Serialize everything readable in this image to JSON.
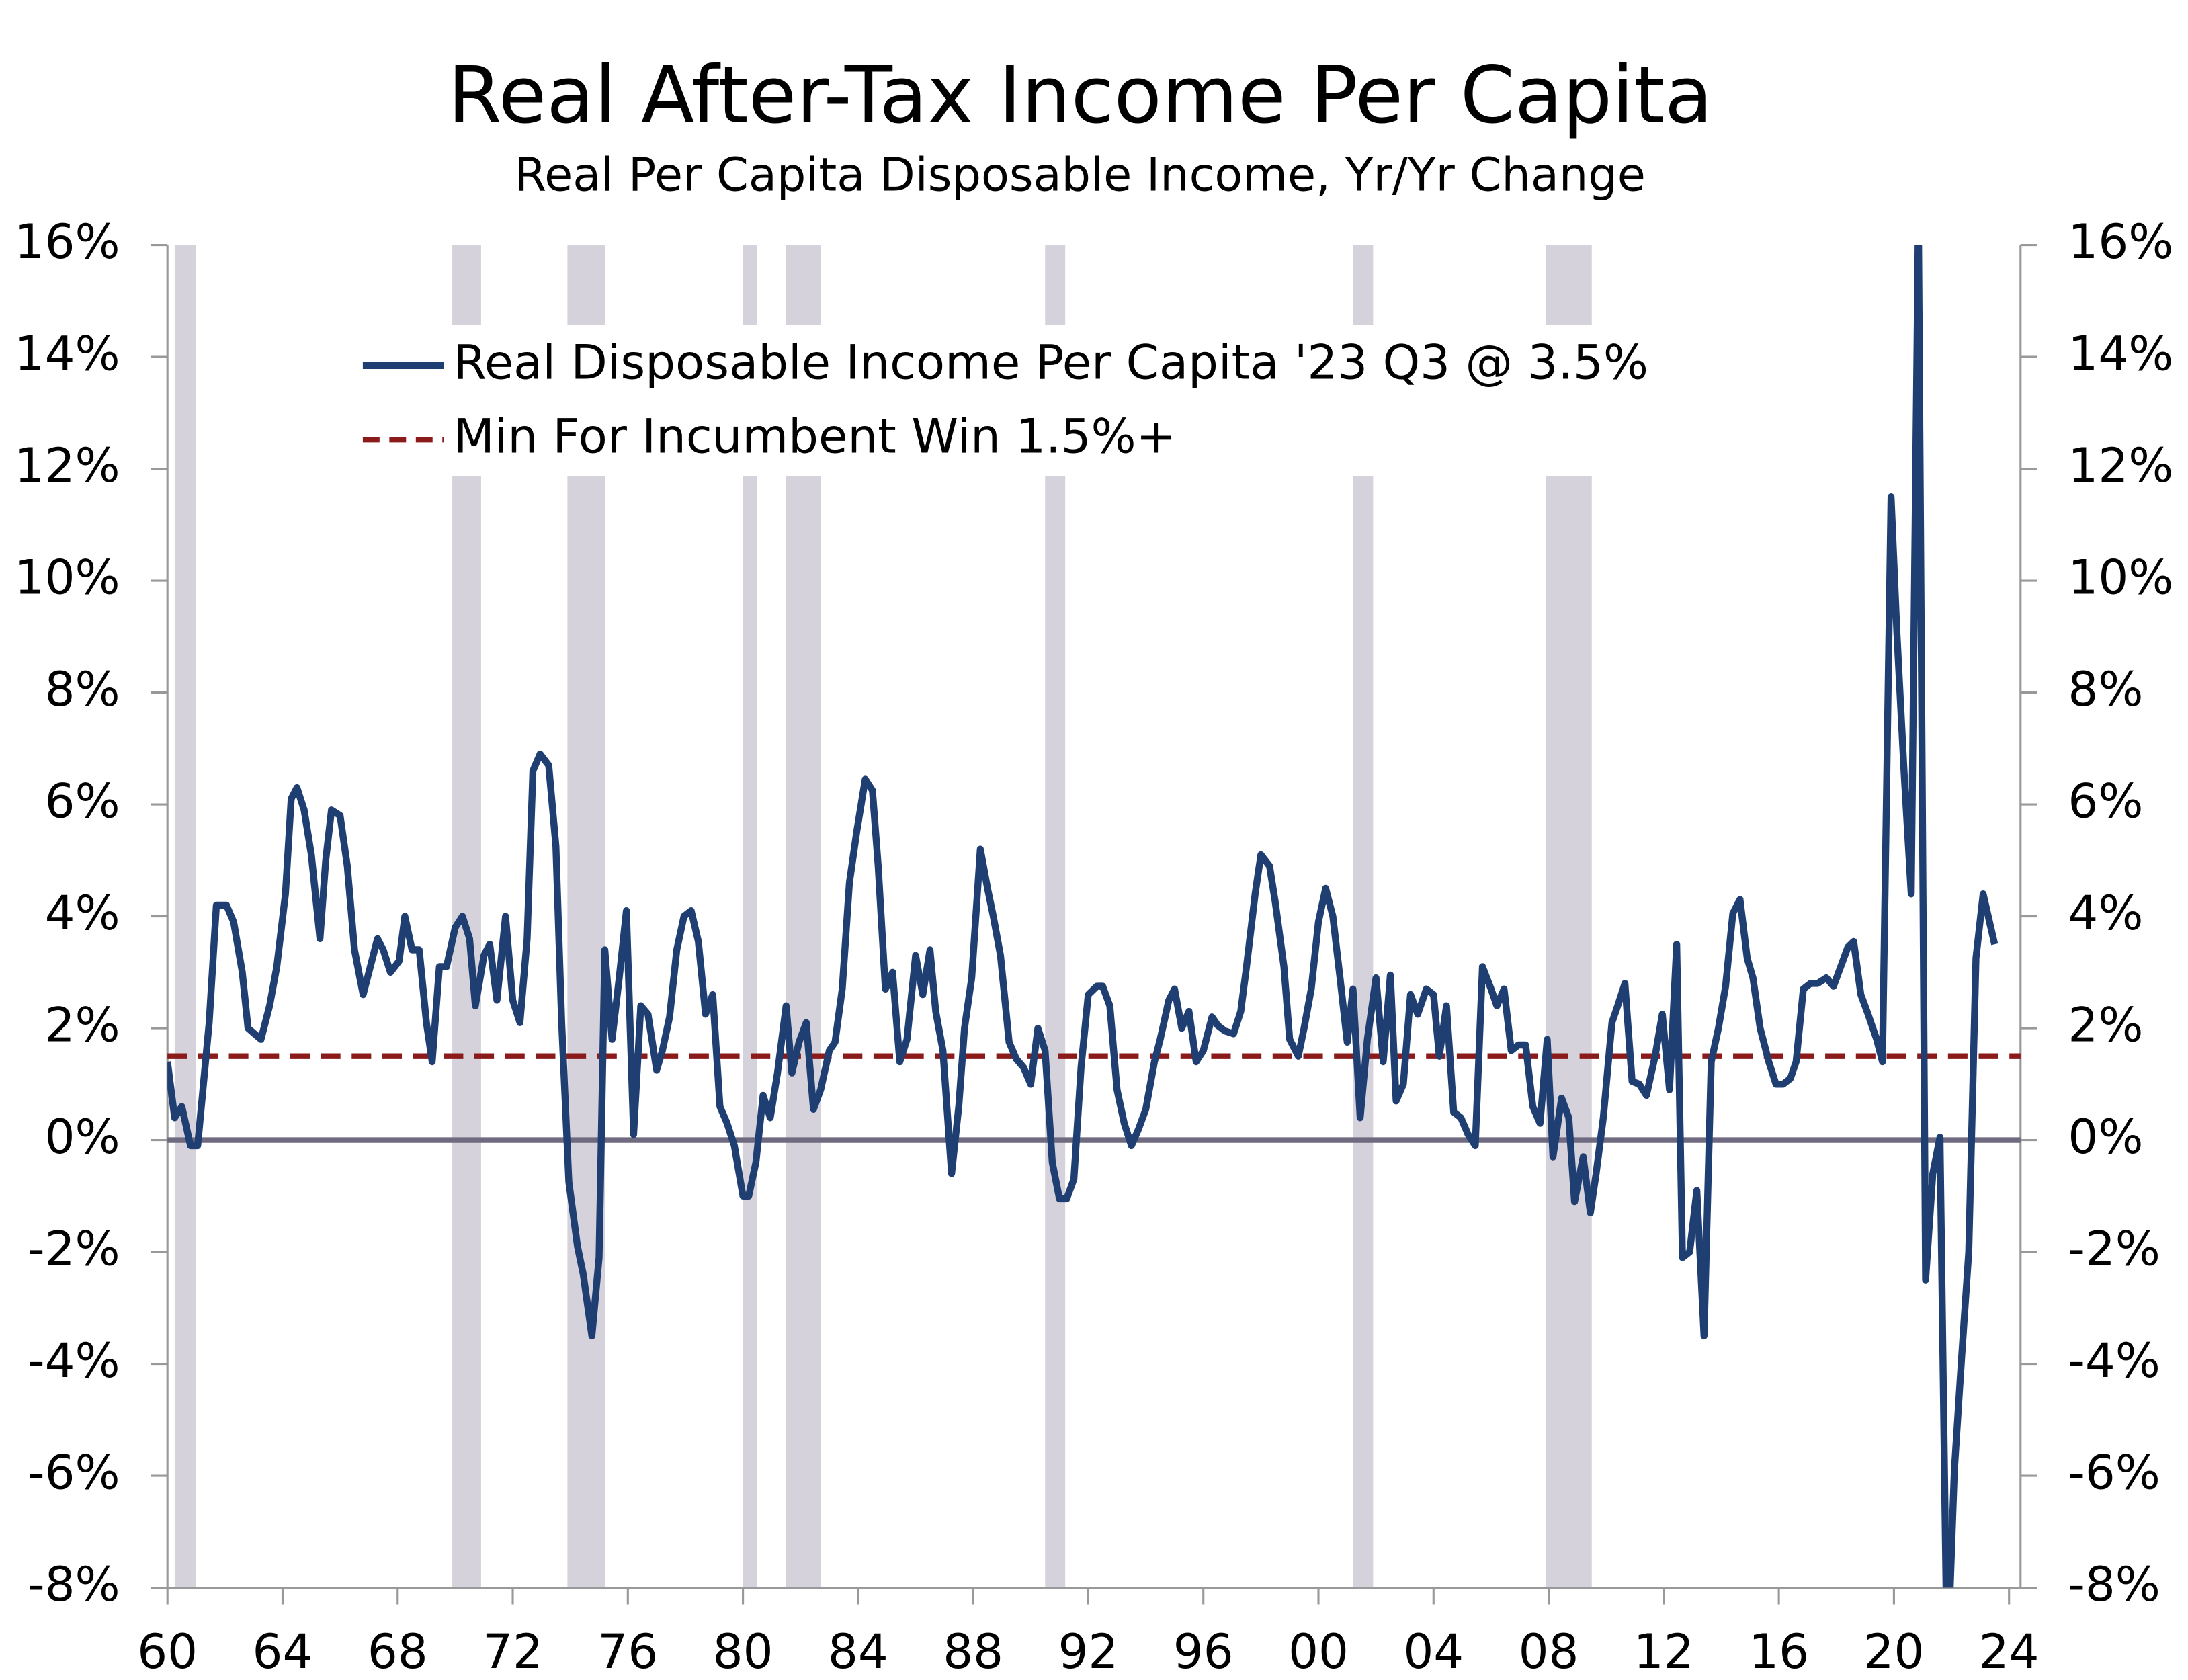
{
  "chart_data": {
    "type": "line",
    "title": "Real After-Tax Income Per Capita",
    "subtitle": "Real Per Capita Disposable Income, Yr/Yr Change",
    "xlim": [
      1960,
      2024.4
    ],
    "xticks": [
      {
        "value": 1960,
        "label": "60"
      },
      {
        "value": 1964,
        "label": "64"
      },
      {
        "value": 1968,
        "label": "68"
      },
      {
        "value": 1972,
        "label": "72"
      },
      {
        "value": 1976,
        "label": "76"
      },
      {
        "value": 1980,
        "label": "80"
      },
      {
        "value": 1984,
        "label": "84"
      },
      {
        "value": 1988,
        "label": "88"
      },
      {
        "value": 1992,
        "label": "92"
      },
      {
        "value": 1996,
        "label": "96"
      },
      {
        "value": 2000,
        "label": "00"
      },
      {
        "value": 2004,
        "label": "04"
      },
      {
        "value": 2008,
        "label": "08"
      },
      {
        "value": 2012,
        "label": "12"
      },
      {
        "value": 2016,
        "label": "16"
      },
      {
        "value": 2020,
        "label": "20"
      },
      {
        "value": 2024,
        "label": "24"
      }
    ],
    "ylim": [
      -8,
      16
    ],
    "yticks": [
      {
        "value": -8,
        "label": "-8%"
      },
      {
        "value": -6,
        "label": "-6%"
      },
      {
        "value": -4,
        "label": "-4%"
      },
      {
        "value": -2,
        "label": "-2%"
      },
      {
        "value": 0,
        "label": "0%"
      },
      {
        "value": 2,
        "label": "2%"
      },
      {
        "value": 4,
        "label": "4%"
      },
      {
        "value": 6,
        "label": "6%"
      },
      {
        "value": 8,
        "label": "8%"
      },
      {
        "value": 10,
        "label": "10%"
      },
      {
        "value": 12,
        "label": "12%"
      },
      {
        "value": 14,
        "label": "14%"
      },
      {
        "value": 16,
        "label": "16%"
      }
    ],
    "y2lim": [
      -8,
      16
    ],
    "y2ticks": [
      {
        "value": -8,
        "label": "-8%"
      },
      {
        "value": -6,
        "label": "-6%"
      },
      {
        "value": -4,
        "label": "-4%"
      },
      {
        "value": -2,
        "label": "-2%"
      },
      {
        "value": 0,
        "label": "0%"
      },
      {
        "value": 2,
        "label": "2%"
      },
      {
        "value": 4,
        "label": "4%"
      },
      {
        "value": 6,
        "label": "6%"
      },
      {
        "value": 8,
        "label": "8%"
      },
      {
        "value": 10,
        "label": "10%"
      },
      {
        "value": 12,
        "label": "12%"
      },
      {
        "value": 14,
        "label": "14%"
      },
      {
        "value": 16,
        "label": "16%"
      }
    ],
    "recessions": [
      [
        1960.25,
        1961.0
      ],
      [
        1969.9,
        1970.9
      ],
      [
        1973.9,
        1975.2
      ],
      [
        1980.0,
        1980.5
      ],
      [
        1981.5,
        1982.7
      ],
      [
        1990.5,
        1991.2
      ],
      [
        2001.2,
        2001.9
      ],
      [
        2007.9,
        2009.5
      ]
    ],
    "recession_color": "#d6d2db",
    "zero_line_color": "#6f6a7f",
    "hlines": [
      {
        "name": "Min For Incumbent Win 1.5%+",
        "value": 1.5,
        "color": "#8b1a1a",
        "style": "dashed"
      }
    ],
    "series": [
      {
        "name": "Real Disposable Income Per Capita '23 Q3 @ 3.5%",
        "color": "#1f3f73",
        "x": [
          1960,
          1960.25,
          1960.5,
          1960.8,
          1961.05,
          1961.45,
          1961.7,
          1962.05,
          1962.3,
          1962.6,
          1962.8,
          1963.25,
          1963.55,
          1963.8,
          1964.1,
          1964.3,
          1964.5,
          1964.75,
          1965,
          1965.3,
          1965.5,
          1965.7,
          1966,
          1966.25,
          1966.5,
          1966.8,
          1967.05,
          1967.3,
          1967.5,
          1967.75,
          1968.05,
          1968.25,
          1968.5,
          1968.75,
          1969,
          1969.2,
          1969.45,
          1969.7,
          1970,
          1970.25,
          1970.5,
          1970.7,
          1971,
          1971.2,
          1971.45,
          1971.75,
          1972,
          1972.25,
          1972.5,
          1972.7,
          1972.95,
          1973.25,
          1973.5,
          1973.7,
          1973.95,
          1974.25,
          1974.45,
          1974.75,
          1975,
          1975.2,
          1975.45,
          1975.7,
          1975.95,
          1976.2,
          1976.45,
          1976.7,
          1977,
          1977.2,
          1977.45,
          1977.7,
          1977.95,
          1978.2,
          1978.45,
          1978.7,
          1978.95,
          1979.2,
          1979.45,
          1979.7,
          1980,
          1980.2,
          1980.45,
          1980.7,
          1980.95,
          1981.2,
          1981.5,
          1981.7,
          1981.95,
          1982.2,
          1982.45,
          1982.7,
          1983,
          1983.2,
          1983.45,
          1983.7,
          1983.95,
          1984.25,
          1984.5,
          1984.7,
          1984.95,
          1985.2,
          1985.45,
          1985.7,
          1986,
          1986.25,
          1986.5,
          1986.7,
          1986.95,
          1987.25,
          1987.5,
          1987.7,
          1987.95,
          1988.25,
          1988.5,
          1988.7,
          1988.95,
          1989.25,
          1989.5,
          1989.75,
          1990,
          1990.25,
          1990.5,
          1990.75,
          1991,
          1991.25,
          1991.5,
          1991.75,
          1992,
          1992.3,
          1992.5,
          1992.75,
          1993,
          1993.25,
          1993.5,
          1993.75,
          1994,
          1994.3,
          1994.5,
          1994.8,
          1995,
          1995.25,
          1995.5,
          1995.75,
          1996,
          1996.3,
          1996.5,
          1996.75,
          1997.05,
          1997.3,
          1997.5,
          1997.8,
          1998,
          1998.3,
          1998.5,
          1998.8,
          1999,
          1999.3,
          1999.5,
          1999.75,
          2000,
          2000.25,
          2000.5,
          2000.75,
          2001,
          2001.2,
          2001.45,
          2001.7,
          2002,
          2002.25,
          2002.5,
          2002.7,
          2002.95,
          2003.2,
          2003.45,
          2003.75,
          2004,
          2004.2,
          2004.45,
          2004.7,
          2004.95,
          2005.2,
          2005.45,
          2005.7,
          2006,
          2006.2,
          2006.45,
          2006.7,
          2006.95,
          2007.2,
          2007.45,
          2007.7,
          2007.95,
          2008.15,
          2008.45,
          2008.7,
          2008.9,
          2009.2,
          2009.45,
          2009.65,
          2009.9,
          2010.2,
          2010.4,
          2010.65,
          2010.9,
          2011.15,
          2011.4,
          2011.7,
          2011.95,
          2012.2,
          2012.45,
          2012.65,
          2012.9,
          2013.15,
          2013.4,
          2013.65,
          2013.9,
          2014.15,
          2014.4,
          2014.65,
          2014.9,
          2015.1,
          2015.35,
          2015.65,
          2015.9,
          2016.15,
          2016.4,
          2016.6,
          2016.85,
          2017.1,
          2017.35,
          2017.65,
          2017.9,
          2018.15,
          2018.4,
          2018.6,
          2018.85,
          2019.1,
          2019.4,
          2019.6,
          2019.9,
          2020.1,
          2020.35,
          2020.6,
          2020.85,
          2021.1,
          2021.35,
          2021.6,
          2021.85,
          2022.1,
          2022.35,
          2022.6,
          2022.85,
          2023.1,
          2023.5
        ],
        "values": [
          1.4,
          0.4,
          0.6,
          -0.1,
          -0.1,
          2.1,
          4.2,
          4.2,
          3.9,
          3.0,
          2.0,
          1.8,
          2.4,
          3.1,
          4.4,
          6.1,
          6.3,
          5.9,
          5.1,
          3.6,
          5.0,
          5.9,
          5.8,
          4.9,
          3.4,
          2.6,
          3.1,
          3.6,
          3.4,
          3.0,
          3.2,
          4.0,
          3.4,
          3.4,
          2.1,
          1.4,
          3.1,
          3.1,
          3.8,
          4.0,
          3.6,
          2.4,
          3.3,
          3.5,
          2.5,
          4.0,
          2.5,
          2.1,
          3.6,
          6.6,
          6.9,
          6.7,
          5.25,
          2.1,
          -0.75,
          -1.9,
          -2.4,
          -3.5,
          -2.1,
          3.4,
          1.8,
          2.9,
          4.1,
          0.1,
          2.4,
          2.25,
          1.25,
          1.6,
          2.2,
          3.4,
          4.0,
          4.1,
          3.55,
          2.25,
          2.6,
          0.6,
          0.3,
          -0.1,
          -1.0,
          -1.0,
          -0.4,
          0.8,
          0.4,
          1.2,
          2.4,
          1.2,
          1.75,
          2.1,
          0.55,
          0.9,
          1.6,
          1.75,
          2.7,
          4.6,
          5.5,
          6.45,
          6.25,
          4.9,
          2.7,
          3.0,
          1.4,
          1.8,
          3.3,
          2.6,
          3.4,
          2.3,
          1.6,
          -0.6,
          0.6,
          2.0,
          2.9,
          5.2,
          4.5,
          4.0,
          3.3,
          1.75,
          1.45,
          1.3,
          1.0,
          2.0,
          1.6,
          -0.4,
          -1.05,
          -1.05,
          -0.7,
          1.3,
          2.6,
          2.75,
          2.75,
          2.4,
          0.9,
          0.3,
          -0.1,
          0.2,
          0.55,
          1.4,
          1.8,
          2.5,
          2.7,
          2.0,
          2.3,
          1.4,
          1.6,
          2.2,
          2.05,
          1.95,
          1.9,
          2.3,
          3.1,
          4.4,
          5.1,
          4.9,
          4.25,
          3.1,
          1.8,
          1.5,
          2.0,
          2.7,
          3.9,
          4.5,
          4.0,
          2.9,
          1.75,
          2.7,
          0.4,
          1.8,
          2.9,
          1.4,
          2.95,
          0.7,
          1.0,
          2.6,
          2.25,
          2.7,
          2.6,
          1.5,
          2.4,
          0.5,
          0.4,
          0.1,
          -0.1,
          3.1,
          2.7,
          2.4,
          2.7,
          1.6,
          1.7,
          1.7,
          0.6,
          0.3,
          1.8,
          -0.3,
          0.75,
          0.4,
          -1.1,
          -0.3,
          -1.3,
          -0.6,
          0.4,
          2.1,
          2.4,
          2.8,
          1.05,
          1.0,
          0.8,
          1.5,
          2.25,
          0.9,
          3.5,
          -2.1,
          -2.0,
          -0.9,
          -3.5,
          1.4,
          2.0,
          2.75,
          4.05,
          4.3,
          3.25,
          2.9,
          2.0,
          1.4,
          1.0,
          1.0,
          1.1,
          1.4,
          2.7,
          2.8,
          2.8,
          2.9,
          2.75,
          3.1,
          3.45,
          3.55,
          2.6,
          2.25,
          1.8,
          1.4,
          11.5,
          9.1,
          6.6,
          4.4,
          16.5,
          -2.5,
          -0.6,
          0.05,
          -9.5,
          -5.9,
          -3.9,
          -2.0,
          3.25,
          4.4,
          3.5
        ]
      }
    ]
  }
}
